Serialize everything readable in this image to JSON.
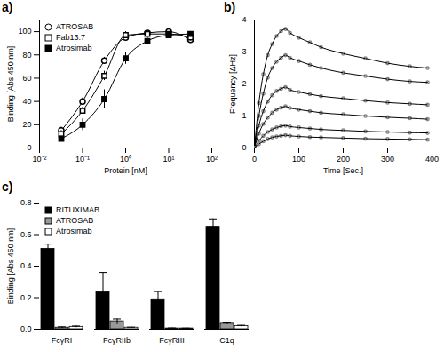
{
  "chart_data": [
    {
      "type": "scatter",
      "title": "a)",
      "xlabel": "Protein [nM]",
      "ylabel": "Binding [Abs 450 nm]",
      "log": "x",
      "legend": "top-left",
      "x": [
        0.032,
        0.1,
        0.32,
        1,
        3.2,
        10,
        32
      ],
      "xlim": [
        0.01,
        100
      ],
      "xticks": [
        {
          "value": 0.01,
          "label": "10⁻²"
        },
        {
          "value": 0.1,
          "label": "10⁻¹"
        },
        {
          "value": 1,
          "label": "10⁰"
        },
        {
          "value": 10,
          "label": "10¹"
        },
        {
          "value": 100,
          "label": "10²"
        }
      ],
      "ylim": [
        0,
        110
      ],
      "yticks": [
        0,
        20,
        40,
        60,
        80,
        100
      ],
      "series": [
        {
          "name": "ATROSAB",
          "color": "#ffffff",
          "marker": "circle",
          "values": [
            15,
            40,
            75,
            95,
            99,
            100,
            93
          ],
          "errors": [
            3,
            3,
            3,
            3,
            2,
            2,
            3
          ]
        },
        {
          "name": "Fab13.7",
          "color": "#ffffff",
          "marker": "square",
          "values": [
            12,
            32,
            62,
            97,
            98,
            98,
            95
          ],
          "errors": [
            3,
            3,
            4,
            3,
            2,
            2,
            3
          ]
        },
        {
          "name": "Atrosimab",
          "color": "#000000",
          "marker": "square",
          "values": [
            8,
            20,
            42,
            77,
            92,
            97,
            98
          ],
          "errors": [
            2,
            5,
            8,
            5,
            3,
            2,
            2
          ]
        }
      ]
    },
    {
      "type": "line",
      "title": "b)",
      "xlabel": "Time [Sec.]",
      "ylabel": "Frequency [ΔHz]",
      "x": [
        0,
        10,
        20,
        30,
        40,
        50,
        60,
        70,
        80,
        100,
        125,
        150,
        200,
        250,
        300,
        350,
        390
      ],
      "xlim": [
        0,
        400
      ],
      "xticks": [
        0,
        100,
        200,
        300,
        400
      ],
      "ylim": [
        0,
        4
      ],
      "yticks": [
        0,
        1,
        2,
        3,
        4
      ],
      "marker": "circle",
      "series": [
        {
          "color": "#000000",
          "values": [
            0,
            1.4,
            2.3,
            2.9,
            3.25,
            3.5,
            3.65,
            3.72,
            3.6,
            3.45,
            3.3,
            3.15,
            2.95,
            2.8,
            2.65,
            2.55,
            2.5
          ]
        },
        {
          "color": "#000000",
          "values": [
            0,
            1.0,
            1.7,
            2.2,
            2.5,
            2.7,
            2.82,
            2.9,
            2.82,
            2.72,
            2.6,
            2.5,
            2.35,
            2.25,
            2.15,
            2.08,
            2.05
          ]
        },
        {
          "color": "#000000",
          "values": [
            0,
            0.7,
            1.15,
            1.45,
            1.65,
            1.78,
            1.85,
            1.9,
            1.82,
            1.75,
            1.68,
            1.62,
            1.55,
            1.48,
            1.42,
            1.38,
            1.35
          ]
        },
        {
          "color": "#000000",
          "values": [
            0,
            0.45,
            0.75,
            0.95,
            1.1,
            1.2,
            1.26,
            1.3,
            1.25,
            1.2,
            1.15,
            1.1,
            1.05,
            1.0,
            0.96,
            0.93,
            0.9
          ]
        },
        {
          "color": "#000000",
          "values": [
            0,
            0.22,
            0.38,
            0.5,
            0.58,
            0.64,
            0.68,
            0.7,
            0.67,
            0.64,
            0.61,
            0.58,
            0.55,
            0.52,
            0.5,
            0.48,
            0.47
          ]
        },
        {
          "color": "#000000",
          "values": [
            0,
            0.12,
            0.21,
            0.28,
            0.33,
            0.36,
            0.38,
            0.4,
            0.38,
            0.36,
            0.34,
            0.33,
            0.31,
            0.29,
            0.28,
            0.27,
            0.26
          ]
        }
      ]
    },
    {
      "type": "bar",
      "title": "c)",
      "ylabel": "Binding [Abs 450 nm]",
      "legend": "top-left",
      "categories": [
        "FcγRI",
        "FcγRIIb",
        "FcγRIII",
        "C1q"
      ],
      "ylim": [
        0,
        0.8
      ],
      "yticks": [
        {
          "value": 0,
          "label": "0.0"
        },
        0.2,
        0.4,
        0.6,
        0.8
      ],
      "series": [
        {
          "name": "RITUXIMAB",
          "color": "#000000",
          "values": [
            0.51,
            0.24,
            0.19,
            0.65
          ],
          "errors": [
            0.03,
            0.12,
            0.05,
            0.05
          ]
        },
        {
          "name": "ATROSAB",
          "color": "#999999",
          "values": [
            0.01,
            0.05,
            0.005,
            0.04
          ],
          "errors": [
            0.005,
            0.015,
            0.003,
            0.005
          ]
        },
        {
          "name": "Atrosimab",
          "color": "#ffffff",
          "values": [
            0.015,
            0.01,
            0.005,
            0.02
          ],
          "errors": [
            0.005,
            0.003,
            0.002,
            0.005
          ]
        }
      ]
    }
  ]
}
